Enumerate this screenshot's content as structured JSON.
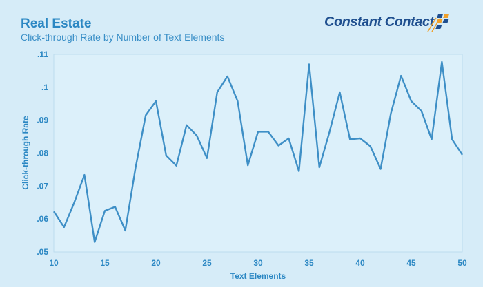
{
  "header": {
    "title": "Real Estate",
    "subtitle": "Click-through Rate by Number of Text Elements"
  },
  "logo": {
    "text": "Constant Contact"
  },
  "colors": {
    "background": "#d6ecf8",
    "plot_background": "#dcf0fa",
    "line": "#3e8fc6",
    "text": "#2b87c3",
    "logo_text": "#1f4f8f",
    "logo_orange": "#f0a12b",
    "logo_blue": "#1f4f8f"
  },
  "chart_data": {
    "type": "line",
    "title": "Real Estate",
    "subtitle": "Click-through Rate by Number of Text Elements",
    "xlabel": "Text Elements",
    "ylabel": "Click-through Rate",
    "xlim": [
      10,
      50
    ],
    "ylim": [
      0.05,
      0.11
    ],
    "xticks": [
      10,
      15,
      20,
      25,
      30,
      35,
      40,
      45,
      50
    ],
    "yticks": [
      0.05,
      0.06,
      0.07,
      0.08,
      0.09,
      0.1,
      0.11
    ],
    "xtick_labels": [
      "10",
      "15",
      "20",
      "25",
      "30",
      "35",
      "40",
      "45",
      "50"
    ],
    "ytick_labels": [
      ".05",
      ".06",
      ".07",
      ".08",
      ".09",
      ".1",
      ".11"
    ],
    "grid": false,
    "series": [
      {
        "x": [
          10,
          11,
          12,
          13,
          14,
          15,
          16,
          17,
          18,
          19,
          20,
          21,
          22,
          23,
          24,
          25,
          26,
          27,
          28,
          29,
          30,
          31,
          32,
          33,
          34,
          35,
          36,
          37,
          38,
          39,
          40,
          41,
          42,
          43,
          44,
          45,
          46,
          47,
          48,
          49,
          50
        ],
        "y": [
          0.0623,
          0.0575,
          0.065,
          0.0734,
          0.053,
          0.0625,
          0.0637,
          0.0565,
          0.0755,
          0.0915,
          0.0958,
          0.0793,
          0.0762,
          0.0885,
          0.0853,
          0.0785,
          0.0985,
          0.1033,
          0.0958,
          0.0763,
          0.0865,
          0.0865,
          0.0823,
          0.0845,
          0.0745,
          0.107,
          0.0757,
          0.0865,
          0.0985,
          0.0842,
          0.0845,
          0.0821,
          0.0752,
          0.092,
          0.1035,
          0.0958,
          0.0928,
          0.0842,
          0.1077,
          0.0842,
          0.0795
        ]
      }
    ]
  }
}
